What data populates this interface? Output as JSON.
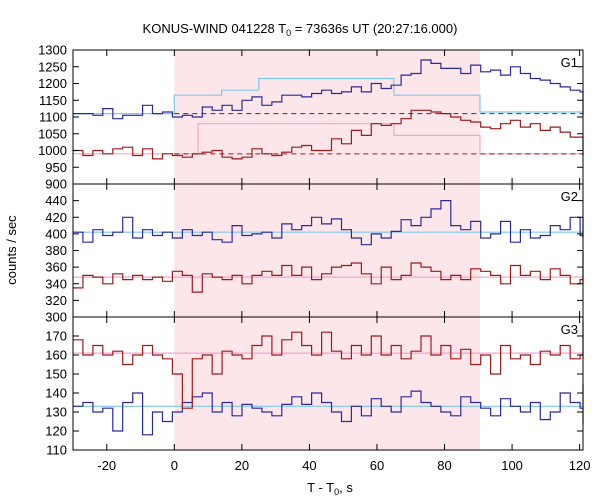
{
  "chart_data": {
    "type": "line",
    "title": "KONUS-WIND 041228 T",
    "title_sub": "0",
    "title_rest": " = 73636s UT (20:27:16.000)",
    "xlabel": "T - T",
    "xlabel_sub": "0",
    "xlabel_rest": ", s",
    "ylabel": "counts / sec",
    "xlim": [
      -30,
      121
    ],
    "xticks": [
      "-20",
      "0",
      "20",
      "40",
      "60",
      "80",
      "100",
      "120"
    ],
    "xtick_values": [
      -20,
      0,
      20,
      40,
      60,
      80,
      100,
      120
    ],
    "highlight_interval": [
      0,
      90.5
    ],
    "colors": {
      "high_series": "#2a2a9a",
      "low_series": "#9b1b1b",
      "high_fit": "#7ec8ee",
      "low_fit": "#f2a6cf",
      "shade": "#fde6ea",
      "bg_dash_high": "#2a2a9a",
      "bg_dash_low": "#9b1b1b"
    },
    "panels": [
      {
        "label": "G1",
        "ylim": [
          900,
          1300
        ],
        "yticks": [
          "950",
          "1000",
          "1050",
          "1100",
          "1150",
          "1200",
          "1250",
          "1300"
        ],
        "ytick_values": [
          950,
          1000,
          1050,
          1100,
          1150,
          1200,
          1250,
          1300
        ],
        "bottom_tick_label": "900",
        "bottom_tick_value": 900,
        "series": [
          {
            "role": "high",
            "start": -30,
            "step": 2.944,
            "values": [
              1110,
              1110,
              1105,
              1125,
              1095,
              1105,
              1105,
              1135,
              1110,
              1115,
              1100,
              1105,
              1100,
              1130,
              1120,
              1135,
              1120,
              1150,
              1160,
              1135,
              1145,
              1165,
              1165,
              1160,
              1170,
              1180,
              1170,
              1175,
              1190,
              1175,
              1200,
              1185,
              1195,
              1225,
              1230,
              1270,
              1260,
              1245,
              1245,
              1230,
              1255,
              1235,
              1240,
              1225,
              1250,
              1230,
              1215,
              1210,
              1200,
              1190,
              1180,
              1175,
              1170,
              1180,
              1165,
              1150,
              1165,
              1160,
              1145,
              1150,
              1140,
              1145,
              1135,
              1150,
              1125,
              1115,
              1110,
              1125,
              1120,
              1110,
              1125,
              1110,
              1115,
              1105
            ]
          },
          {
            "role": "low",
            "start": -30,
            "step": 2.944,
            "values": [
              1000,
              985,
              1000,
              990,
              1005,
              1010,
              985,
              1005,
              975,
              990,
              985,
              980,
              990,
              995,
              1000,
              980,
              975,
              980,
              1005,
              990,
              985,
              995,
              1010,
              1015,
              1000,
              1000,
              1035,
              1020,
              1060,
              1045,
              1080,
              1075,
              1080,
              1095,
              1120,
              1120,
              1115,
              1110,
              1100,
              1090,
              1085,
              1070,
              1065,
              1080,
              1090,
              1070,
              1080,
              1060,
              1070,
              1055,
              1040,
              1040,
              1030,
              1035,
              1040,
              1045,
              1045,
              1040,
              1030,
              1035,
              1010,
              1005,
              995,
              1000,
              990,
              985,
              990,
              995,
              985,
              1005,
              985,
              990,
              1000,
              1010
            ]
          }
        ],
        "fits": [
          {
            "role": "high",
            "segments": [
              [
                -30,
                1110
              ],
              [
                0,
                1110
              ],
              [
                0,
                1165
              ],
              [
                14,
                1165
              ],
              [
                14,
                1180
              ],
              [
                25,
                1180
              ],
              [
                25,
                1215
              ],
              [
                65,
                1215
              ],
              [
                65,
                1165
              ],
              [
                90.5,
                1165
              ],
              [
                90.5,
                1115
              ],
              [
                121,
                1115
              ]
            ]
          },
          {
            "role": "low",
            "segments": [
              [
                -30,
                990
              ],
              [
                7,
                990
              ],
              [
                7,
                1080
              ],
              [
                65,
                1080
              ],
              [
                65,
                1045
              ],
              [
                90.5,
                1045
              ],
              [
                90.5,
                990
              ],
              [
                121,
                990
              ]
            ]
          }
        ],
        "bg_levels": [
          {
            "role": "high",
            "value": 1110
          },
          {
            "role": "low",
            "value": 990
          }
        ]
      },
      {
        "label": "G2",
        "ylim": [
          300,
          460
        ],
        "yticks": [
          "300",
          "320",
          "340",
          "360",
          "380",
          "400",
          "420",
          "440"
        ],
        "ytick_values": [
          300,
          320,
          340,
          360,
          380,
          400,
          420,
          440
        ],
        "series": [
          {
            "role": "high",
            "start": -30,
            "step": 2.944,
            "values": [
              402,
              390,
              405,
              398,
              402,
              420,
              395,
              405,
              398,
              402,
              395,
              405,
              398,
              402,
              393,
              390,
              410,
              398,
              400,
              402,
              395,
              412,
              405,
              410,
              420,
              412,
              418,
              405,
              395,
              387,
              400,
              395,
              403,
              417,
              410,
              420,
              430,
              440,
              410,
              405,
              415,
              395,
              400,
              415,
              390,
              405,
              395,
              398,
              410,
              405,
              420,
              398,
              410,
              395,
              400,
              405,
              398,
              412,
              405,
              410,
              398,
              402,
              420,
              395,
              405,
              400,
              398,
              410,
              405,
              395,
              402,
              400,
              405,
              400
            ]
          },
          {
            "role": "low",
            "start": -30,
            "step": 2.944,
            "values": [
              335,
              350,
              348,
              340,
              352,
              345,
              350,
              345,
              348,
              343,
              355,
              350,
              330,
              352,
              348,
              345,
              350,
              340,
              350,
              355,
              350,
              362,
              350,
              360,
              345,
              352,
              360,
              362,
              365,
              352,
              340,
              360,
              345,
              350,
              365,
              360,
              355,
              345,
              350,
              345,
              358,
              355,
              350,
              340,
              362,
              350,
              355,
              345,
              358,
              350,
              340,
              345,
              350,
              355,
              345,
              350,
              340,
              355,
              345,
              350,
              345,
              360,
              345,
              350,
              345,
              350,
              345,
              348,
              360,
              345,
              380,
              350,
              345,
              340
            ]
          }
        ],
        "fits": [
          {
            "role": "high",
            "segments": [
              [
                -30,
                402
              ],
              [
                121,
                402
              ]
            ]
          },
          {
            "role": "low",
            "segments": [
              [
                -30,
                348
              ],
              [
                121,
                348
              ]
            ]
          }
        ]
      },
      {
        "label": "G3",
        "ylim": [
          110,
          180
        ],
        "yticks": [
          "110",
          "120",
          "130",
          "140",
          "150",
          "160",
          "170"
        ],
        "ytick_values": [
          110,
          120,
          130,
          140,
          150,
          160,
          170
        ],
        "series": [
          {
            "role": "high",
            "start": -30,
            "step": 2.944,
            "values": [
              133,
              135,
              130,
              132,
              120,
              135,
              140,
              118,
              130,
              125,
              130,
              135,
              138,
              140,
              130,
              135,
              128,
              134,
              132,
              130,
              128,
              134,
              138,
              134,
              140,
              135,
              130,
              125,
              133,
              128,
              137,
              133,
              130,
              138,
              141,
              135,
              133,
              130,
              128,
              138,
              135,
              132,
              128,
              137,
              133,
              130,
              135,
              126,
              130,
              140,
              135,
              132,
              128,
              130,
              137,
              135,
              130,
              145,
              138,
              130,
              124,
              132,
              133,
              140,
              135,
              130,
              138,
              140,
              133,
              128,
              135,
              130,
              125,
              133
            ]
          },
          {
            "role": "low",
            "start": -30,
            "step": 2.944,
            "values": [
              168,
              160,
              165,
              160,
              162,
              155,
              160,
              165,
              160,
              158,
              150,
              132,
              158,
              160,
              150,
              162,
              160,
              158,
              165,
              170,
              160,
              168,
              172,
              165,
              160,
              172,
              162,
              158,
              165,
              160,
              170,
              160,
              165,
              158,
              162,
              170,
              160,
              165,
              158,
              163,
              155,
              160,
              150,
              165,
              158,
              160,
              155,
              162,
              160,
              165,
              158,
              160,
              168,
              162,
              158,
              160,
              165,
              158,
              160,
              165,
              158,
              160,
              162,
              158,
              165,
              160,
              162,
              158,
              165,
              172,
              160,
              165,
              178,
              168
            ]
          }
        ],
        "fits": [
          {
            "role": "high",
            "segments": [
              [
                -30,
                133
              ],
              [
                121,
                133
              ]
            ]
          },
          {
            "role": "low",
            "segments": [
              [
                -30,
                161
              ],
              [
                121,
                161
              ]
            ]
          }
        ]
      }
    ]
  }
}
